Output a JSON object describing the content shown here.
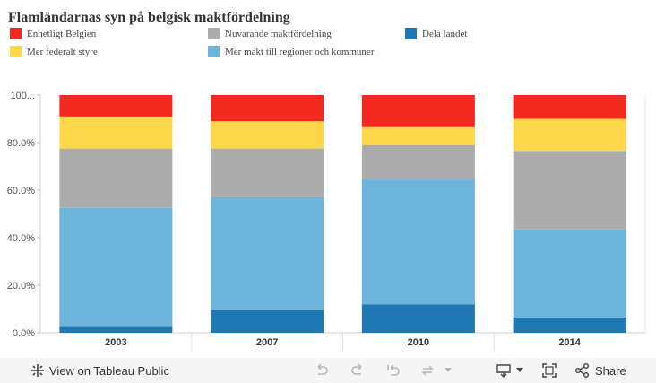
{
  "chart_data": {
    "type": "bar",
    "stacked": true,
    "title": "Flamländarnas syn på belgisk maktfördelning",
    "categories": [
      "2003",
      "2007",
      "2010",
      "2014"
    ],
    "ylim": [
      0,
      100
    ],
    "yticks": [
      0,
      20,
      40,
      60,
      80,
      100
    ],
    "ytick_labels": [
      "0.0%",
      "20.0%",
      "40.0%",
      "60.0%",
      "80.0%",
      "100..."
    ],
    "grid": false,
    "legend_position": "top",
    "series": [
      {
        "name": "Dela landet",
        "color": "#1f77b4",
        "values": [
          2.5,
          9.5,
          12,
          6.5
        ]
      },
      {
        "name": "Mer makt till regioner och kommuner",
        "color": "#6cb4d9",
        "values": [
          50,
          47.5,
          52.5,
          37
        ]
      },
      {
        "name": "Nuvarande maktfördelning",
        "color": "#acacac",
        "values": [
          25,
          20.5,
          14.5,
          33
        ]
      },
      {
        "name": "Mer federalt styre",
        "color": "#fed84b",
        "values": [
          13.5,
          11.5,
          7.5,
          13.5
        ]
      },
      {
        "name": "Enhetligt Belgien",
        "color": "#f2291f",
        "values": [
          9,
          11,
          13.5,
          10
        ]
      }
    ]
  },
  "legend_layout": [
    [
      "Enhetligt Belgien",
      "Nuvarande maktfördelning",
      "Dela landet"
    ],
    [
      "Mer federalt styre",
      "Mer makt till regioner och kommuner"
    ]
  ],
  "toolbar": {
    "view_label": "View on Tableau Public",
    "share_label": "Share",
    "icons": [
      "tableau-logo-icon",
      "undo-icon",
      "redo-icon",
      "revert-icon",
      "refresh-icon",
      "download-icon",
      "fullscreen-icon",
      "share-icon"
    ]
  }
}
